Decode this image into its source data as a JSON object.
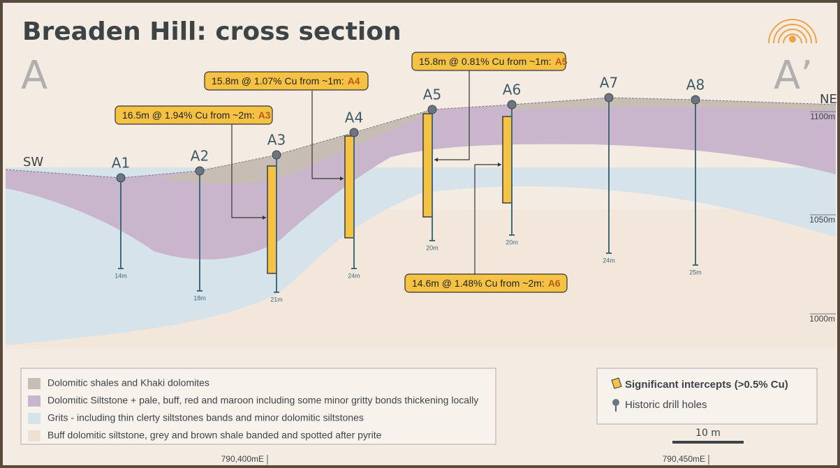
{
  "title": "Breaden Hill: cross section",
  "section_start": "A",
  "section_end": "A’",
  "direction_left": "SW",
  "direction_right": "NE",
  "elevations": [
    "1100m",
    "1050m",
    "1000m"
  ],
  "drill_holes": [
    {
      "label": "A1",
      "depth": "14m"
    },
    {
      "label": "A2",
      "depth": "18m"
    },
    {
      "label": "A3",
      "depth": "21m"
    },
    {
      "label": "A4",
      "depth": "24m"
    },
    {
      "label": "A5",
      "depth": "20m"
    },
    {
      "label": "A6",
      "depth": "20m"
    },
    {
      "label": "A7",
      "depth": "24m"
    },
    {
      "label": "A8",
      "depth": "25m"
    }
  ],
  "intercepts": [
    {
      "text": "16.5m @ 1.94% Cu from ~2m:",
      "hole": "A3"
    },
    {
      "text": "15.8m @ 1.07% Cu from ~1m:",
      "hole": "A4"
    },
    {
      "text": "15.8m @ 0.81% Cu from ~1m:",
      "hole": "A5"
    },
    {
      "text": "14.6m @ 1.48% Cu from ~2m:",
      "hole": "A6"
    }
  ],
  "legend": {
    "units": [
      "Dolomitic shales and Khaki dolomites",
      "Dolomitic Siltstone + pale, buff, red and maroon including some minor gritty bonds thickening locally",
      "Grits - including thin clerty siltstones bands and minor dolomitic siltstones",
      "Buff dolomitic siltstone, grey and brown shale banded and spotted after pyrite"
    ],
    "symbols": [
      "Significant intercepts (>0.5% Cu)",
      "Historic drill holes"
    ]
  },
  "scale_bar": "10 m",
  "eastings": [
    "790,400mE",
    "790,450mE"
  ]
}
